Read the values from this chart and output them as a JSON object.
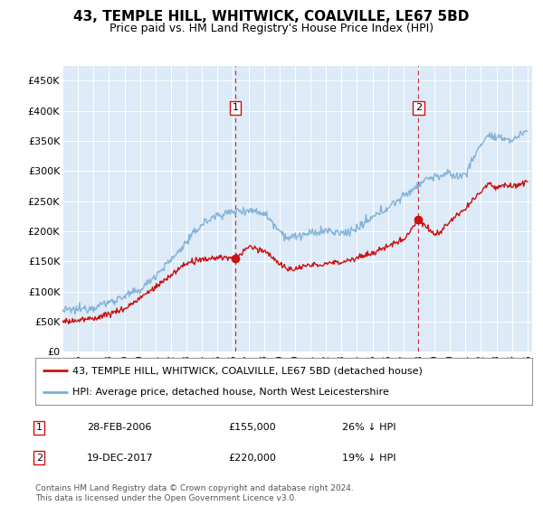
{
  "title": "43, TEMPLE HILL, WHITWICK, COALVILLE, LE67 5BD",
  "subtitle": "Price paid vs. HM Land Registry's House Price Index (HPI)",
  "legend_line1": "43, TEMPLE HILL, WHITWICK, COALVILLE, LE67 5BD (detached house)",
  "legend_line2": "HPI: Average price, detached house, North West Leicestershire",
  "annotation1_date": "28-FEB-2006",
  "annotation1_price": "£155,000",
  "annotation1_hpi": "26% ↓ HPI",
  "annotation2_date": "19-DEC-2017",
  "annotation2_price": "£220,000",
  "annotation2_hpi": "19% ↓ HPI",
  "footer": "Contains HM Land Registry data © Crown copyright and database right 2024.\nThis data is licensed under the Open Government Licence v3.0.",
  "hpi_color": "#7aadd4",
  "price_color": "#cc1111",
  "vline_color": "#cc1111",
  "bg_color": "#ddeaf7",
  "annotation_box_color": "#cc1111",
  "ylim": [
    0,
    475000
  ],
  "yticks": [
    0,
    50000,
    100000,
    150000,
    200000,
    250000,
    300000,
    350000,
    400000,
    450000
  ],
  "vline1_year": 2006.15,
  "vline2_year": 2017.97,
  "sale1_year": 2006.15,
  "sale1_price": 155000,
  "sale2_year": 2017.97,
  "sale2_price": 220000
}
